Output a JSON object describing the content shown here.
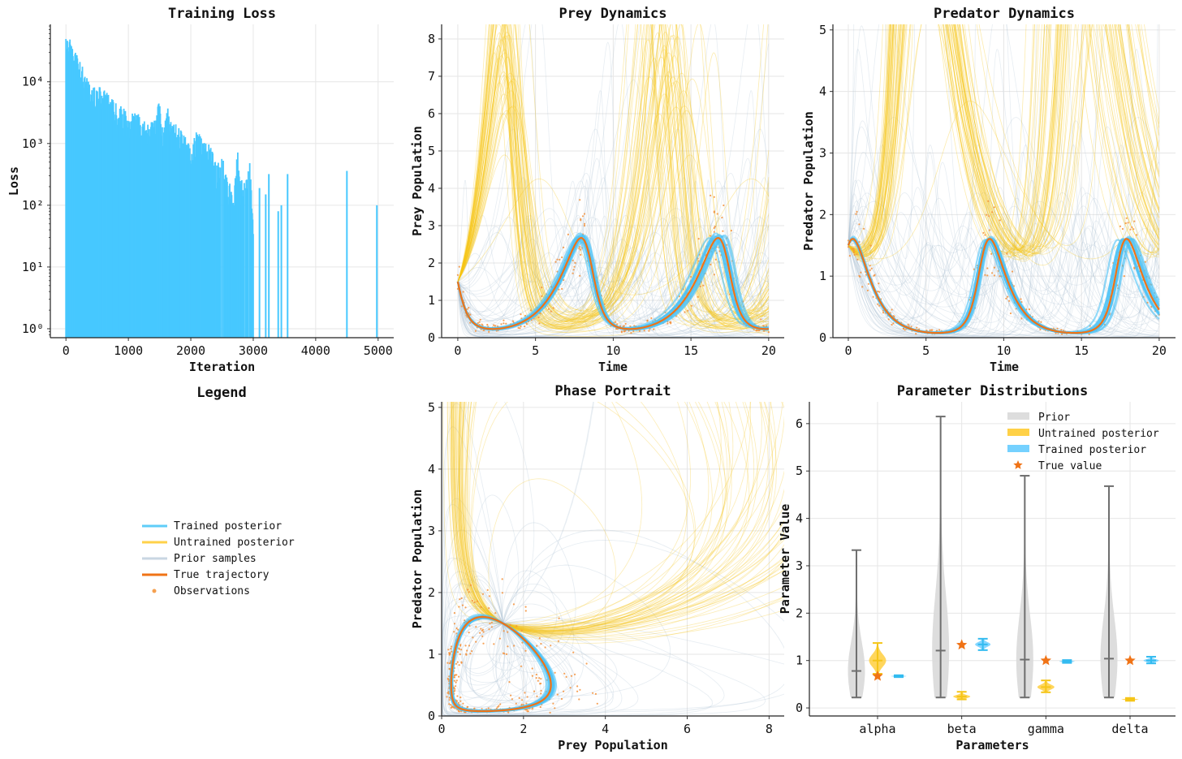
{
  "legend": {
    "title": "Legend",
    "entries": [
      {
        "label": "Trained posterior",
        "color": "#5fcdf8",
        "kind": "line"
      },
      {
        "label": "Untrained posterior",
        "color": "#ffd24a",
        "kind": "line"
      },
      {
        "label": "Prior samples",
        "color": "#c9d6e2",
        "kind": "line"
      },
      {
        "label": "True trajectory",
        "color": "#f07316",
        "kind": "line"
      },
      {
        "label": "Observations",
        "color": "#f5a050",
        "kind": "dot"
      }
    ]
  },
  "colors": {
    "loss_bar": "#47c8ff",
    "true": "#f07316",
    "trained": "#4fc3f7",
    "untrained": "#f5c518",
    "prior": "#aec3d3",
    "observation": "#f5913a",
    "prior_violin": "#d9d9d9",
    "prior_violin_line": "#6e6e6e",
    "untrained_violin": "#ffcc33",
    "trained_violin": "#66ccff"
  },
  "chart_data": [
    {
      "type": "bar",
      "title": "Training Loss",
      "xlabel": "Iteration",
      "ylabel": "Loss",
      "xlim": [
        -250,
        5250
      ],
      "ylog": true,
      "ylim_log10": [
        -0.145,
        4.93
      ],
      "xticks": [
        0,
        1000,
        2000,
        3000,
        4000,
        5000
      ],
      "xtick_labels": [
        "0",
        "1000",
        "2000",
        "3000",
        "4000",
        "5000"
      ],
      "yticks": [
        1,
        10,
        100,
        1000,
        10000
      ],
      "ytick_labels": [
        "10⁰",
        "10¹",
        "10²",
        "10³",
        "10⁴"
      ],
      "dense_until": 3000,
      "envelope": [
        [
          0,
          50000
        ],
        [
          50,
          55000
        ],
        [
          100,
          35000
        ],
        [
          200,
          30000
        ],
        [
          300,
          14000
        ],
        [
          400,
          9000
        ],
        [
          500,
          8500
        ],
        [
          600,
          8000
        ],
        [
          700,
          6000
        ],
        [
          800,
          4500
        ],
        [
          900,
          4000
        ],
        [
          1000,
          3000
        ],
        [
          1100,
          3200
        ],
        [
          1200,
          3000
        ],
        [
          1300,
          2000
        ],
        [
          1400,
          2500
        ],
        [
          1500,
          5000
        ],
        [
          1550,
          2000
        ],
        [
          1650,
          5300
        ],
        [
          1700,
          2000
        ],
        [
          1800,
          2200
        ],
        [
          1900,
          1500
        ],
        [
          2000,
          900
        ],
        [
          2100,
          1700
        ],
        [
          2200,
          1100
        ],
        [
          2300,
          1000
        ],
        [
          2400,
          500
        ],
        [
          2500,
          700
        ],
        [
          2600,
          250
        ],
        [
          2700,
          250
        ],
        [
          2750,
          900
        ],
        [
          2800,
          250
        ],
        [
          2900,
          300
        ],
        [
          2950,
          650
        ],
        [
          3000,
          40
        ]
      ],
      "sparse": [
        [
          3100,
          190
        ],
        [
          3200,
          150
        ],
        [
          3250,
          320
        ],
        [
          3400,
          80
        ],
        [
          3450,
          100
        ],
        [
          3550,
          320
        ],
        [
          4500,
          360
        ],
        [
          4980,
          100
        ]
      ]
    },
    {
      "type": "line",
      "title": "Prey Dynamics",
      "xlabel": "Time",
      "ylabel": "Prey Population",
      "xlim": [
        -1.04,
        21
      ],
      "ylim": [
        0,
        8.39
      ],
      "xticks": [
        0,
        5,
        10,
        15,
        20
      ],
      "xtick_labels": [
        "0",
        "5",
        "10",
        "15",
        "20"
      ],
      "yticks": [
        0,
        1,
        2,
        3,
        4,
        5,
        6,
        7,
        8
      ],
      "ytick_labels": [
        "0",
        "1",
        "2",
        "3",
        "4",
        "5",
        "6",
        "7",
        "8"
      ]
    },
    {
      "type": "line",
      "title": "Predator Dynamics",
      "xlabel": "Time",
      "ylabel": "Predator Population",
      "xlim": [
        -0.99,
        21.05
      ],
      "ylim": [
        0,
        5.09
      ],
      "xticks": [
        0,
        5,
        10,
        15,
        20
      ],
      "xtick_labels": [
        "0",
        "5",
        "10",
        "15",
        "20"
      ],
      "yticks": [
        0,
        1,
        2,
        3,
        4,
        5
      ],
      "ytick_labels": [
        "0",
        "1",
        "2",
        "3",
        "4",
        "5"
      ]
    },
    {
      "type": "line",
      "title": "Phase Portrait",
      "xlabel": "Prey Population",
      "ylabel": "Predator Population",
      "xlim": [
        0,
        8.37
      ],
      "ylim": [
        0,
        5.09
      ],
      "xticks": [
        0,
        2,
        4,
        6,
        8
      ],
      "xtick_labels": [
        "0",
        "2",
        "4",
        "6",
        "8"
      ],
      "yticks": [
        0,
        1,
        2,
        3,
        4,
        5
      ],
      "ytick_labels": [
        "0",
        "1",
        "2",
        "3",
        "4",
        "5"
      ]
    },
    {
      "type": "violin",
      "title": "Parameter Distributions",
      "xlabel": "Parameters",
      "ylabel": "Parameter Value",
      "xlim": [
        -0.81,
        3.54
      ],
      "ylim": [
        -0.17,
        6.46
      ],
      "xticks": [
        0,
        1,
        2,
        3
      ],
      "xtick_labels": [
        "alpha",
        "beta",
        "gamma",
        "delta"
      ],
      "yticks": [
        0,
        1,
        2,
        3,
        4,
        5,
        6
      ],
      "ytick_labels": [
        "0",
        "1",
        "2",
        "3",
        "4",
        "5",
        "6"
      ],
      "legend_entries": [
        "Prior",
        "Untrained posterior",
        "Trained posterior",
        "True value"
      ],
      "prior": [
        {
          "min": 0.22,
          "median": 0.78,
          "max": 3.33
        },
        {
          "min": 0.22,
          "median": 1.21,
          "max": 6.15
        },
        {
          "min": 0.22,
          "median": 1.02,
          "max": 4.9
        },
        {
          "min": 0.22,
          "median": 1.04,
          "max": 4.68
        }
      ],
      "untrained": [
        {
          "min": 0.72,
          "median": 1.0,
          "max": 1.37
        },
        {
          "min": 0.18,
          "median": 0.24,
          "max": 0.34
        },
        {
          "min": 0.33,
          "median": 0.44,
          "max": 0.58
        },
        {
          "min": 0.15,
          "median": 0.18,
          "max": 0.21
        }
      ],
      "trained": [
        {
          "min": 0.65,
          "median": 0.67,
          "max": 0.69
        },
        {
          "min": 1.22,
          "median": 1.34,
          "max": 1.46
        },
        {
          "min": 0.95,
          "median": 0.98,
          "max": 1.01
        },
        {
          "min": 0.94,
          "median": 1.0,
          "max": 1.08
        }
      ],
      "true_values": [
        0.67,
        1.33,
        1.0,
        1.0
      ]
    }
  ],
  "simulation": {
    "initial_prey": 1.5,
    "initial_predator": 1.5,
    "t_end": 20,
    "true_params": {
      "alpha": 0.67,
      "beta": 1.33,
      "gamma": 1.0,
      "delta": 1.0
    },
    "untrained_params": {
      "alpha": 1.0,
      "beta": 0.24,
      "gamma": 0.45,
      "delta": 0.18
    },
    "n_observations": 420
  }
}
